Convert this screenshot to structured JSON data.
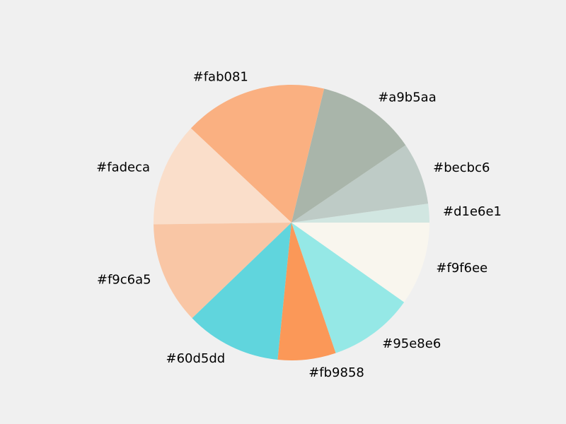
{
  "chart_data": {
    "type": "pie",
    "title": "",
    "start_angle_deg": 0,
    "direction": "counterclockwise",
    "slices": [
      {
        "label": "#d1e6e1",
        "color": "#d1e6e1",
        "value": 2.2
      },
      {
        "label": "#becbc6",
        "color": "#becbc6",
        "value": 7.3
      },
      {
        "label": "#a9b5aa",
        "color": "#a9b5aa",
        "value": 11.7
      },
      {
        "label": "#fab081",
        "color": "#fab081",
        "value": 16.8
      },
      {
        "label": "#fadeca",
        "color": "#fadeca",
        "value": 12.2
      },
      {
        "label": "#f9c6a5",
        "color": "#f9c6a5",
        "value": 12.0
      },
      {
        "label": "#60d5dd",
        "color": "#60d5dd",
        "value": 11.2
      },
      {
        "label": "#fb9858",
        "color": "#fb9858",
        "value": 6.8
      },
      {
        "label": "#95e8e6",
        "color": "#95e8e6",
        "value": 10.0
      },
      {
        "label": "#f9f6ee",
        "color": "#f9f6ee",
        "value": 9.8
      }
    ]
  }
}
